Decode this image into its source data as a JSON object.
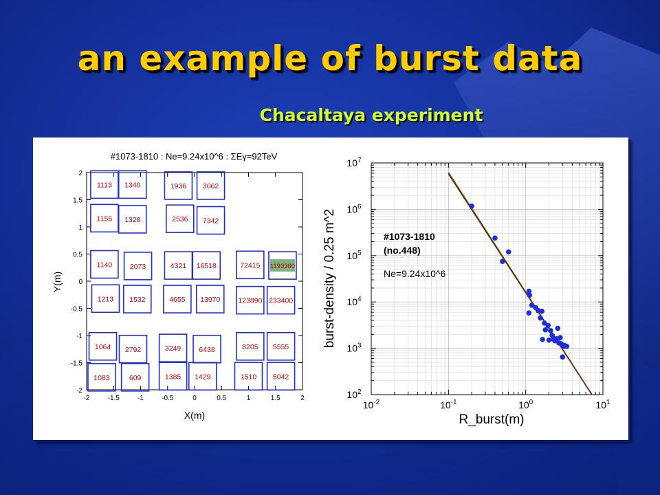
{
  "slide": {
    "title": "an example of burst data",
    "subtitle": "Chacaltaya experiment"
  },
  "chart_data": [
    {
      "type": "table",
      "title": "#1073-1810 : Ne=9.24x10^6 : ΣEγ=92TeV",
      "xlabel": "X(m)",
      "ylabel": "Y(m)",
      "xlim": [
        -2,
        2
      ],
      "ylim": [
        -2,
        2
      ],
      "xticks": [
        "-2",
        "-1.5",
        "-1",
        "-0.5",
        "0",
        "0.5",
        "1",
        "1.5",
        "2"
      ],
      "yticks": [
        "2",
        "1.5",
        "1",
        "0.5",
        "0",
        "-0.5",
        "-1",
        "-1.5",
        "-2"
      ],
      "highlight_color": "#7fb07f",
      "detectors": [
        {
          "x": -1.67,
          "y": 1.78,
          "value": "1113"
        },
        {
          "x": -1.15,
          "y": 1.78,
          "value": "1340"
        },
        {
          "x": -0.3,
          "y": 1.76,
          "value": "1936"
        },
        {
          "x": 0.3,
          "y": 1.76,
          "value": "3062"
        },
        {
          "x": -1.67,
          "y": 1.16,
          "value": "1155"
        },
        {
          "x": -1.15,
          "y": 1.14,
          "value": "1328"
        },
        {
          "x": -0.27,
          "y": 1.15,
          "value": "2536"
        },
        {
          "x": 0.3,
          "y": 1.12,
          "value": "7342"
        },
        {
          "x": -1.67,
          "y": 0.31,
          "value": "1140"
        },
        {
          "x": -1.05,
          "y": 0.28,
          "value": "2073"
        },
        {
          "x": -0.3,
          "y": 0.29,
          "value": "4321"
        },
        {
          "x": 0.22,
          "y": 0.29,
          "value": "16518"
        },
        {
          "x": 1.03,
          "y": 0.3,
          "value": "72415"
        },
        {
          "x": 1.63,
          "y": 0.29,
          "value": "1193300",
          "highlight": true
        },
        {
          "x": -1.65,
          "y": -0.32,
          "value": "1213"
        },
        {
          "x": -1.06,
          "y": -0.33,
          "value": "1532"
        },
        {
          "x": -0.32,
          "y": -0.33,
          "value": "4655"
        },
        {
          "x": 0.29,
          "y": -0.33,
          "value": "13970"
        },
        {
          "x": 1.03,
          "y": -0.35,
          "value": "123890"
        },
        {
          "x": 1.6,
          "y": -0.35,
          "value": "233400"
        },
        {
          "x": -1.7,
          "y": -1.2,
          "value": "1064"
        },
        {
          "x": -1.14,
          "y": -1.25,
          "value": "2792"
        },
        {
          "x": -0.4,
          "y": -1.23,
          "value": "3249"
        },
        {
          "x": 0.23,
          "y": -1.25,
          "value": "6438"
        },
        {
          "x": 1.03,
          "y": -1.2,
          "value": "8205"
        },
        {
          "x": 1.6,
          "y": -1.2,
          "value": "5555"
        },
        {
          "x": -1.72,
          "y": -1.77,
          "value": "1083"
        },
        {
          "x": -1.1,
          "y": -1.77,
          "value": "609"
        },
        {
          "x": -0.4,
          "y": -1.75,
          "value": "1385"
        },
        {
          "x": 0.15,
          "y": -1.75,
          "value": "1429"
        },
        {
          "x": 1.0,
          "y": -1.75,
          "value": "1510"
        },
        {
          "x": 1.6,
          "y": -1.75,
          "value": "5042"
        }
      ]
    },
    {
      "type": "scatter",
      "xscale": "log",
      "yscale": "log",
      "xlabel": "R_burst(m)",
      "ylabel": "burst-density / 0.25 m^2",
      "xlim": [
        0.01,
        10
      ],
      "ylim": [
        100,
        10000000
      ],
      "grid": true,
      "annotations": [
        "#1073-1810",
        "(no.448)",
        "Ne=9.24x10^6"
      ],
      "point_color": "#1f2fd6",
      "points": [
        [
          0.2,
          1170000
        ],
        [
          0.4,
          240000
        ],
        [
          0.5,
          75000
        ],
        [
          0.6,
          120000
        ],
        [
          1.1,
          17000
        ],
        [
          1.12,
          14000
        ],
        [
          1.1,
          5800
        ],
        [
          1.2,
          8500
        ],
        [
          1.35,
          7500
        ],
        [
          1.45,
          6500
        ],
        [
          1.55,
          4500
        ],
        [
          1.62,
          6300
        ],
        [
          1.65,
          1550
        ],
        [
          1.75,
          3500
        ],
        [
          1.8,
          2500
        ],
        [
          1.95,
          3100
        ],
        [
          2.0,
          1500
        ],
        [
          2.1,
          2400
        ],
        [
          2.2,
          1900
        ],
        [
          2.3,
          1550
        ],
        [
          2.4,
          1450
        ],
        [
          2.5,
          1600
        ],
        [
          2.6,
          2700
        ],
        [
          2.7,
          1300
        ],
        [
          2.8,
          1700
        ],
        [
          2.9,
          1250
        ],
        [
          3.0,
          650
        ],
        [
          3.1,
          1100
        ],
        [
          3.2,
          1150
        ],
        [
          3.4,
          1100
        ]
      ],
      "fit_lines": [
        {
          "color": "#22aa22",
          "x": [
            0.1,
            7.2
          ],
          "y": [
            6300000,
            100
          ]
        },
        {
          "color": "#cc1111",
          "x": [
            0.1,
            7.2
          ],
          "y": [
            6000000,
            100
          ]
        },
        {
          "color": "#5a2a10",
          "x": [
            0.1,
            7.2
          ],
          "y": [
            5800000,
            100
          ]
        }
      ]
    }
  ]
}
